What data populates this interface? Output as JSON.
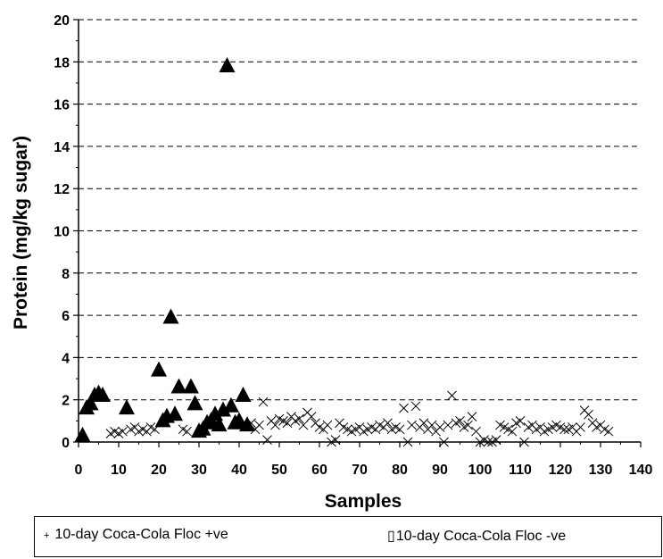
{
  "chart_data": {
    "type": "scatter",
    "title": "",
    "xlabel": "Samples",
    "ylabel": "Protein (mg/kg sugar)",
    "xlim": [
      0,
      140
    ],
    "ylim": [
      0,
      20
    ],
    "x_ticks": [
      0,
      10,
      20,
      30,
      40,
      50,
      60,
      70,
      80,
      90,
      100,
      110,
      120,
      130,
      140
    ],
    "y_ticks": [
      0,
      2,
      4,
      6,
      8,
      10,
      12,
      14,
      16,
      18,
      20
    ],
    "grid": "horizontal dashed",
    "legend_position": "bottom",
    "series": [
      {
        "name": "10-day Coca-Cola Floc +ve",
        "marker": "triangle",
        "color": "#000000",
        "points": [
          [
            1,
            0.3
          ],
          [
            2,
            1.6
          ],
          [
            3,
            1.8
          ],
          [
            4,
            2.2
          ],
          [
            5,
            2.3
          ],
          [
            6,
            2.2
          ],
          [
            12,
            1.6
          ],
          [
            20,
            3.4
          ],
          [
            21,
            1.0
          ],
          [
            22,
            1.2
          ],
          [
            23,
            5.9
          ],
          [
            24,
            1.3
          ],
          [
            25,
            2.6
          ],
          [
            28,
            2.6
          ],
          [
            29,
            1.8
          ],
          [
            30,
            0.5
          ],
          [
            31,
            0.6
          ],
          [
            32,
            0.9
          ],
          [
            33,
            1.0
          ],
          [
            34,
            1.3
          ],
          [
            35,
            0.8
          ],
          [
            36,
            1.5
          ],
          [
            37,
            17.8
          ],
          [
            38,
            1.7
          ],
          [
            39,
            0.9
          ],
          [
            40,
            1.0
          ],
          [
            41,
            2.2
          ],
          [
            42,
            0.8
          ]
        ]
      },
      {
        "name": "10-day Coca-Cola Floc -ve",
        "marker": "x",
        "color": "#000000",
        "points": [
          [
            8,
            0.4
          ],
          [
            9,
            0.5
          ],
          [
            10,
            0.4
          ],
          [
            11,
            0.5
          ],
          [
            13,
            0.6
          ],
          [
            14,
            0.7
          ],
          [
            15,
            0.5
          ],
          [
            16,
            0.6
          ],
          [
            17,
            0.5
          ],
          [
            18,
            0.7
          ],
          [
            19,
            0.6
          ],
          [
            26,
            0.6
          ],
          [
            27,
            0.5
          ],
          [
            43,
            0.9
          ],
          [
            44,
            0.6
          ],
          [
            45,
            0.8
          ],
          [
            46,
            1.9
          ],
          [
            47,
            0.1
          ],
          [
            48,
            1.0
          ],
          [
            49,
            0.8
          ],
          [
            50,
            1.1
          ],
          [
            51,
            1.0
          ],
          [
            52,
            0.9
          ],
          [
            53,
            1.2
          ],
          [
            54,
            1.0
          ],
          [
            55,
            1.1
          ],
          [
            56,
            0.8
          ],
          [
            57,
            1.4
          ],
          [
            58,
            1.2
          ],
          [
            59,
            0.9
          ],
          [
            60,
            0.7
          ],
          [
            61,
            0.6
          ],
          [
            62,
            0.8
          ],
          [
            63,
            0.0
          ],
          [
            64,
            0.1
          ],
          [
            65,
            0.9
          ],
          [
            66,
            0.7
          ],
          [
            67,
            0.6
          ],
          [
            68,
            0.5
          ],
          [
            69,
            0.6
          ],
          [
            70,
            0.7
          ],
          [
            71,
            0.5
          ],
          [
            72,
            0.6
          ],
          [
            73,
            0.7
          ],
          [
            74,
            0.6
          ],
          [
            75,
            0.8
          ],
          [
            76,
            0.7
          ],
          [
            77,
            0.9
          ],
          [
            78,
            0.6
          ],
          [
            79,
            0.7
          ],
          [
            80,
            0.6
          ],
          [
            81,
            1.6
          ],
          [
            82,
            0.0
          ],
          [
            83,
            0.8
          ],
          [
            84,
            1.7
          ],
          [
            85,
            0.7
          ],
          [
            86,
            0.9
          ],
          [
            87,
            0.6
          ],
          [
            88,
            0.8
          ],
          [
            89,
            0.5
          ],
          [
            90,
            0.7
          ],
          [
            91,
            0.0
          ],
          [
            92,
            0.8
          ],
          [
            93,
            2.2
          ],
          [
            94,
            0.9
          ],
          [
            95,
            1.0
          ],
          [
            96,
            0.7
          ],
          [
            97,
            0.8
          ],
          [
            98,
            1.2
          ],
          [
            99,
            0.5
          ],
          [
            100,
            0.0
          ],
          [
            101,
            0.1
          ],
          [
            102,
            0.0
          ],
          [
            103,
            0.0
          ],
          [
            104,
            0.1
          ],
          [
            105,
            0.8
          ],
          [
            106,
            0.7
          ],
          [
            107,
            0.6
          ],
          [
            108,
            0.5
          ],
          [
            109,
            0.9
          ],
          [
            110,
            1.0
          ],
          [
            111,
            0.0
          ],
          [
            112,
            0.7
          ],
          [
            113,
            0.8
          ],
          [
            114,
            0.6
          ],
          [
            115,
            0.7
          ],
          [
            116,
            0.5
          ],
          [
            117,
            0.6
          ],
          [
            118,
            0.7
          ],
          [
            119,
            0.8
          ],
          [
            120,
            0.7
          ],
          [
            121,
            0.6
          ],
          [
            122,
            0.6
          ],
          [
            123,
            0.7
          ],
          [
            124,
            0.5
          ],
          [
            125,
            0.7
          ],
          [
            126,
            1.5
          ],
          [
            127,
            1.3
          ],
          [
            128,
            0.9
          ],
          [
            129,
            0.7
          ],
          [
            130,
            0.8
          ],
          [
            131,
            0.6
          ],
          [
            132,
            0.5
          ]
        ]
      }
    ]
  },
  "legend": {
    "entries": [
      {
        "symbol": "+",
        "label": "10-day Coca-Cola Floc +ve"
      },
      {
        "symbol": "▯",
        "label": "10-day Coca-Cola Floc -ve"
      }
    ]
  }
}
